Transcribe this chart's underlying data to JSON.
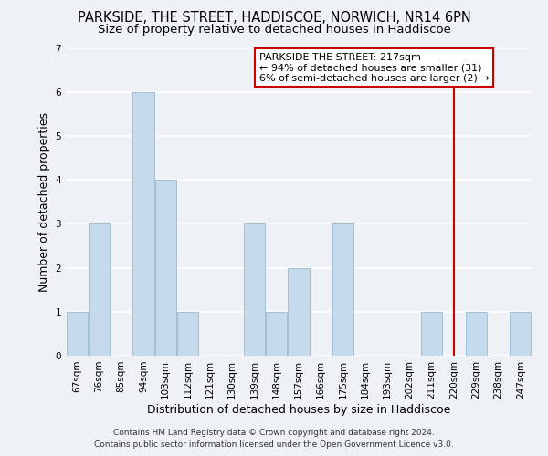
{
  "title": "PARKSIDE, THE STREET, HADDISCOE, NORWICH, NR14 6PN",
  "subtitle": "Size of property relative to detached houses in Haddiscoe",
  "xlabel": "Distribution of detached houses by size in Haddiscoe",
  "ylabel": "Number of detached properties",
  "bin_labels": [
    "67sqm",
    "76sqm",
    "85sqm",
    "94sqm",
    "103sqm",
    "112sqm",
    "121sqm",
    "130sqm",
    "139sqm",
    "148sqm",
    "157sqm",
    "166sqm",
    "175sqm",
    "184sqm",
    "193sqm",
    "202sqm",
    "211sqm",
    "220sqm",
    "229sqm",
    "238sqm",
    "247sqm"
  ],
  "bar_heights": [
    1,
    3,
    0,
    6,
    4,
    1,
    0,
    0,
    3,
    1,
    2,
    0,
    3,
    0,
    0,
    0,
    1,
    0,
    1,
    0,
    1
  ],
  "bar_color": "#c5daea",
  "bar_edge_color": "#a0c0d8",
  "red_line_index": 17,
  "annotation_title": "PARKSIDE THE STREET: 217sqm",
  "annotation_line1": "← 94% of detached houses are smaller (31)",
  "annotation_line2": "6% of semi-detached houses are larger (2) →",
  "annotation_box_color": "#ffffff",
  "annotation_border_color": "#cc0000",
  "red_line_color": "#cc0000",
  "ylim": [
    0,
    7
  ],
  "yticks": [
    0,
    1,
    2,
    3,
    4,
    5,
    6,
    7
  ],
  "footer_line1": "Contains HM Land Registry data © Crown copyright and database right 2024.",
  "footer_line2": "Contains public sector information licensed under the Open Government Licence v3.0.",
  "background_color": "#eef2f7",
  "title_fontsize": 10.5,
  "subtitle_fontsize": 9.5,
  "axis_label_fontsize": 9,
  "tick_fontsize": 7.5,
  "footer_fontsize": 6.5,
  "annotation_fontsize": 8
}
